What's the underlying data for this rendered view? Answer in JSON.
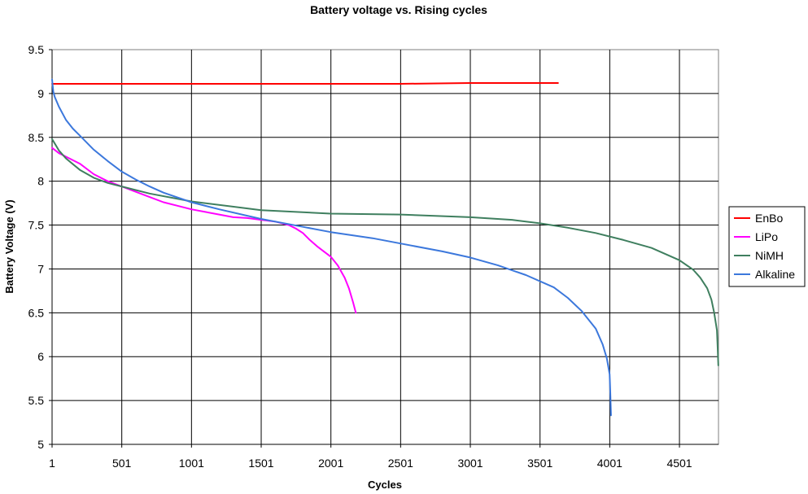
{
  "chart_data": {
    "type": "line",
    "title": "Battery voltage vs. Rising cycles",
    "xlabel": "Cycles",
    "ylabel": "Battery Voltage (V)",
    "xlim": [
      1,
      4781
    ],
    "ylim": [
      5,
      9.5
    ],
    "x_ticks": [
      1,
      501,
      1001,
      1501,
      2001,
      2501,
      3001,
      3501,
      4001,
      4501
    ],
    "y_ticks": [
      5,
      5.5,
      6,
      6.5,
      7,
      7.5,
      8,
      8.5,
      9,
      9.5
    ],
    "y_tick_labels": [
      "5",
      "5.5",
      "6",
      "6.5",
      "7",
      "7.5",
      "8",
      "8.5",
      "9",
      "9.5"
    ],
    "grid": true,
    "legend_position": "right",
    "series": [
      {
        "name": "EnBo",
        "color": "#ff0000",
        "x": [
          1,
          500,
          1000,
          1500,
          2000,
          2500,
          3000,
          3500,
          3630
        ],
        "y": [
          9.11,
          9.11,
          9.11,
          9.11,
          9.11,
          9.11,
          9.12,
          9.12,
          9.12
        ]
      },
      {
        "name": "LiPo",
        "color": "#ff00ff",
        "x": [
          1,
          50,
          100,
          200,
          300,
          400,
          500,
          600,
          700,
          800,
          900,
          1000,
          1100,
          1200,
          1300,
          1400,
          1500,
          1600,
          1700,
          1750,
          1800,
          1850,
          1900,
          1950,
          2000,
          2050,
          2100,
          2130,
          2160,
          2180
        ],
        "y": [
          8.38,
          8.32,
          8.28,
          8.2,
          8.08,
          8.0,
          7.94,
          7.88,
          7.82,
          7.76,
          7.72,
          7.68,
          7.65,
          7.62,
          7.59,
          7.58,
          7.56,
          7.54,
          7.5,
          7.46,
          7.41,
          7.33,
          7.26,
          7.2,
          7.14,
          7.04,
          6.9,
          6.78,
          6.62,
          6.5
        ]
      },
      {
        "name": "NiMH",
        "color": "#3f7f5f",
        "x": [
          1,
          20,
          50,
          100,
          200,
          300,
          400,
          500,
          700,
          1000,
          1500,
          2000,
          2500,
          3000,
          3300,
          3500,
          3700,
          3900,
          4100,
          4300,
          4500,
          4600,
          4650,
          4700,
          4730,
          4750,
          4770,
          4775,
          4780
        ],
        "y": [
          8.48,
          8.43,
          8.35,
          8.26,
          8.13,
          8.04,
          7.98,
          7.94,
          7.86,
          7.77,
          7.67,
          7.63,
          7.62,
          7.59,
          7.56,
          7.52,
          7.47,
          7.41,
          7.33,
          7.24,
          7.1,
          6.99,
          6.9,
          6.78,
          6.65,
          6.5,
          6.3,
          6.1,
          5.9
        ]
      },
      {
        "name": "Alkaline",
        "color": "#3c78dc",
        "x": [
          1,
          10,
          20,
          50,
          100,
          150,
          200,
          300,
          400,
          500,
          600,
          700,
          800,
          1000,
          1200,
          1500,
          1800,
          2000,
          2300,
          2500,
          2800,
          3000,
          3200,
          3400,
          3600,
          3700,
          3800,
          3900,
          3950,
          3980,
          4000,
          4005,
          4010
        ],
        "y": [
          9.16,
          9.02,
          8.96,
          8.85,
          8.7,
          8.6,
          8.52,
          8.36,
          8.23,
          8.11,
          8.02,
          7.94,
          7.87,
          7.76,
          7.68,
          7.57,
          7.48,
          7.42,
          7.35,
          7.29,
          7.2,
          7.13,
          7.04,
          6.93,
          6.79,
          6.67,
          6.52,
          6.32,
          6.14,
          5.98,
          5.8,
          5.6,
          5.33
        ]
      }
    ]
  }
}
